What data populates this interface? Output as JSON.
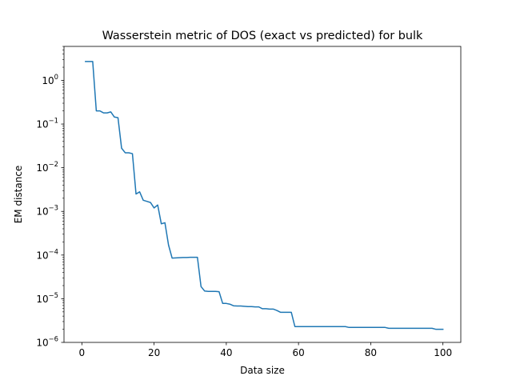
{
  "chart_data": {
    "type": "line",
    "title": "Wasserstein metric of DOS (exact vs predicted) for bulk",
    "xlabel": "Data size",
    "ylabel": "EM distance",
    "xlim": [
      -4.95,
      104.95
    ],
    "ylim": [
      1e-06,
      6
    ],
    "yscale": "log",
    "grid": false,
    "xticks": [
      0,
      20,
      40,
      60,
      80,
      100
    ],
    "yticks": [
      {
        "base": "10",
        "exp": "0",
        "value": 1
      },
      {
        "base": "10",
        "exp": "−1",
        "value": 0.1
      },
      {
        "base": "10",
        "exp": "−2",
        "value": 0.01
      },
      {
        "base": "10",
        "exp": "−3",
        "value": 0.001
      },
      {
        "base": "10",
        "exp": "−4",
        "value": 0.0001
      },
      {
        "base": "10",
        "exp": "−5",
        "value": 1e-05
      },
      {
        "base": "10",
        "exp": "−6",
        "value": 1e-06
      }
    ],
    "series": [
      {
        "color": "#1f77b4",
        "x": [
          1,
          2,
          3,
          4,
          5,
          6,
          7,
          8,
          9,
          10,
          11,
          12,
          13,
          14,
          15,
          16,
          17,
          18,
          19,
          20,
          21,
          22,
          23,
          24,
          25,
          26,
          27,
          28,
          29,
          30,
          31,
          32,
          33,
          34,
          35,
          36,
          37,
          38,
          39,
          40,
          41,
          42,
          43,
          44,
          45,
          46,
          47,
          48,
          49,
          50,
          51,
          52,
          53,
          54,
          55,
          56,
          57,
          58,
          59,
          60,
          61,
          62,
          63,
          64,
          65,
          66,
          67,
          68,
          69,
          70,
          71,
          72,
          73,
          74,
          75,
          76,
          77,
          78,
          79,
          80,
          81,
          82,
          83,
          84,
          85,
          86,
          87,
          88,
          89,
          90,
          91,
          92,
          93,
          94,
          95,
          96,
          97,
          98,
          99,
          100
        ],
        "y": [
          2.7,
          2.7,
          2.7,
          0.2,
          0.2,
          0.18,
          0.18,
          0.19,
          0.145,
          0.14,
          0.028,
          0.022,
          0.022,
          0.021,
          0.0025,
          0.0028,
          0.0018,
          0.0017,
          0.0016,
          0.0012,
          0.0014,
          0.00052,
          0.00055,
          0.00017,
          8.5e-05,
          8.6e-05,
          8.7e-05,
          8.8e-05,
          8.8e-05,
          8.9e-05,
          8.9e-05,
          8.9e-05,
          1.9e-05,
          1.5e-05,
          1.47e-05,
          1.47e-05,
          1.47e-05,
          1.45e-05,
          7.8e-06,
          7.8e-06,
          7.5e-06,
          6.9e-06,
          6.8e-06,
          6.8e-06,
          6.7e-06,
          6.6e-06,
          6.6e-06,
          6.5e-06,
          6.5e-06,
          5.9e-06,
          5.9e-06,
          5.8e-06,
          5.8e-06,
          5.4e-06,
          4.9e-06,
          4.9e-06,
          4.9e-06,
          4.9e-06,
          2.3e-06,
          2.3e-06,
          2.3e-06,
          2.3e-06,
          2.3e-06,
          2.3e-06,
          2.3e-06,
          2.3e-06,
          2.3e-06,
          2.3e-06,
          2.3e-06,
          2.3e-06,
          2.3e-06,
          2.3e-06,
          2.3e-06,
          2.2e-06,
          2.2e-06,
          2.2e-06,
          2.2e-06,
          2.2e-06,
          2.2e-06,
          2.2e-06,
          2.2e-06,
          2.2e-06,
          2.2e-06,
          2.2e-06,
          2.1e-06,
          2.1e-06,
          2.1e-06,
          2.1e-06,
          2.1e-06,
          2.1e-06,
          2.1e-06,
          2.1e-06,
          2.1e-06,
          2.1e-06,
          2.1e-06,
          2.1e-06,
          2.1e-06,
          2e-06,
          2e-06,
          2e-06
        ]
      }
    ]
  }
}
